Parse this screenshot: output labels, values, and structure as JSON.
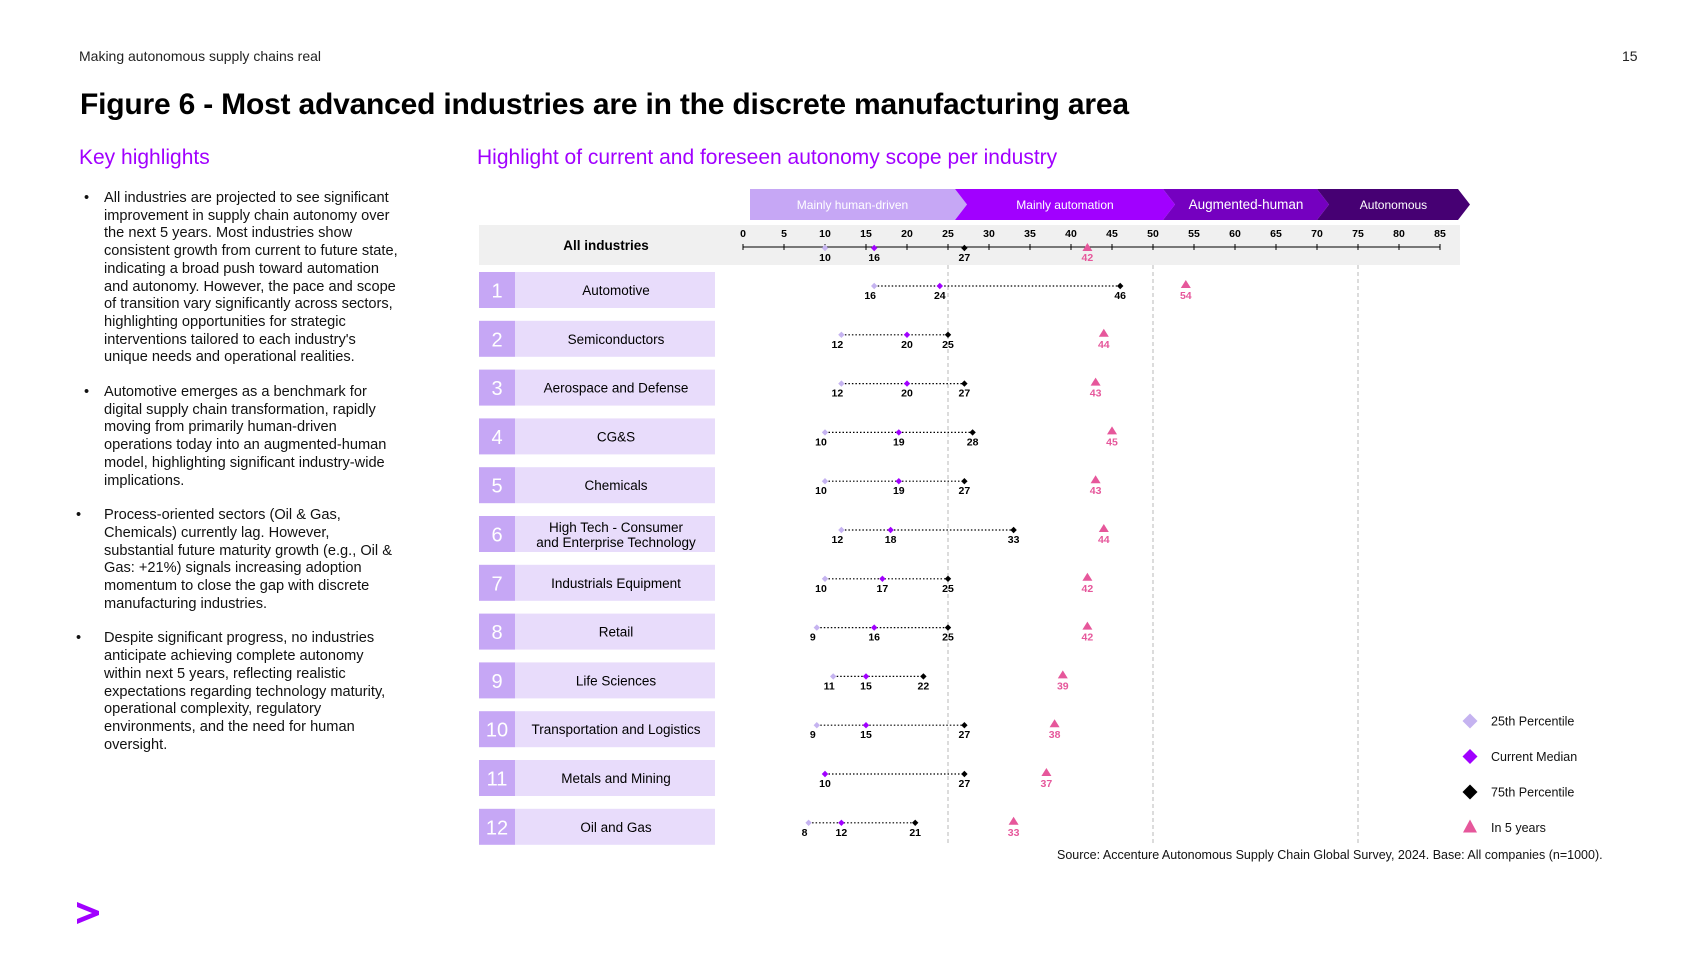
{
  "header": {
    "left_text": "Making autonomous supply chains real",
    "page_number": "15"
  },
  "figure_title": "Figure 6 - Most advanced industries are in the discrete manufacturing area",
  "highlights": {
    "title": "Key highlights",
    "bullets": [
      "All industries are projected to see significant improvement in supply chain autonomy over the next 5 years. Most industries show consistent growth from current to future state, indicating a broad push toward automation and autonomy. However, the pace and scope of transition vary significantly across sectors, highlighting opportunities for strategic interventions tailored to each industry's unique needs and operational realities.",
      "Automotive emerges as a benchmark for digital supply chain transformation, rapidly moving from primarily human-driven operations today into an augmented-human model, highlighting significant industry-wide implications.",
      "Process-oriented sectors (Oil & Gas, Chemicals) currently lag. However, substantial future maturity growth (e.g., Oil & Gas: +21%) signals increasing adoption momentum to close the gap with discrete manufacturing industries.",
      "Despite significant progress, no industries anticipate achieving complete autonomy within next 5 years, reflecting realistic expectations regarding technology maturity, operational complexity, regulatory environments, and the need for human oversight."
    ]
  },
  "source": "Source: Accenture  Autonomous Supply Chain Global Survey, 2024. Base: All companies (n=1000).",
  "logo": "accenture-greater-than-logo",
  "colors": {
    "accent": "#a100ff",
    "p25": "#c5b3f0",
    "median": "#a100ff",
    "p75": "#000000",
    "future": "#e6579b",
    "row_bg": "#e8dcfb",
    "row_num_bg": "#c6a7f5",
    "stage1": "#c6a7f5",
    "stage2": "#a100ff",
    "stage3": "#7500c0",
    "stage4": "#460073"
  },
  "chart_data": {
    "type": "scatter",
    "title": "Highlight of current and foreseen autonomy scope per industry",
    "xlim": [
      0,
      85
    ],
    "x_ticks": [
      0,
      5,
      10,
      15,
      20,
      25,
      30,
      35,
      40,
      45,
      50,
      55,
      60,
      65,
      70,
      75,
      80,
      85
    ],
    "reference_lines": [
      25,
      50,
      75
    ],
    "stages": [
      {
        "label": "Mainly human-driven"
      },
      {
        "label": "Mainly automation"
      },
      {
        "label": "Augmented-human"
      },
      {
        "label": "Autonomous"
      }
    ],
    "all_industries": {
      "label": "All industries",
      "p25": 10,
      "median": 16,
      "p75": 27,
      "future": 42
    },
    "series": [
      {
        "name": "25th Percentile"
      },
      {
        "name": "Current Median"
      },
      {
        "name": "75th Percentile"
      },
      {
        "name": "In 5 years"
      }
    ],
    "industries": [
      {
        "num": "1",
        "name": "Automotive",
        "p25": 16,
        "median": 24,
        "p75": 46,
        "future": 54
      },
      {
        "num": "2",
        "name": "Semiconductors",
        "p25": 12,
        "median": 20,
        "p75": 25,
        "future": 44
      },
      {
        "num": "3",
        "name": "Aerospace and Defense",
        "p25": 12,
        "median": 20,
        "p75": 27,
        "future": 43
      },
      {
        "num": "4",
        "name": "CG&S",
        "p25": 10,
        "median": 19,
        "p75": 28,
        "future": 45
      },
      {
        "num": "5",
        "name": "Chemicals",
        "p25": 10,
        "median": 19,
        "p75": 27,
        "future": 43
      },
      {
        "num": "6",
        "name": "High Tech - Consumer and Enterprise Technology",
        "p25": 12,
        "median": 18,
        "p75": 33,
        "future": 44
      },
      {
        "num": "7",
        "name": "Industrials Equipment",
        "p25": 10,
        "median": 17,
        "p75": 25,
        "future": 42
      },
      {
        "num": "8",
        "name": "Retail",
        "p25": 9,
        "median": 16,
        "p75": 25,
        "future": 42
      },
      {
        "num": "9",
        "name": "Life Sciences",
        "p25": 11,
        "median": 15,
        "p75": 22,
        "future": 39
      },
      {
        "num": "10",
        "name": "Transportation and Logistics",
        "p25": 9,
        "median": 15,
        "p75": 27,
        "future": 38
      },
      {
        "num": "11",
        "name": "Metals and Mining",
        "p25": 10,
        "median": 10,
        "p75": 27,
        "future": 37
      },
      {
        "num": "12",
        "name": "Oil and Gas",
        "p25": 8,
        "median": 12,
        "p75": 21,
        "future": 33
      }
    ]
  }
}
